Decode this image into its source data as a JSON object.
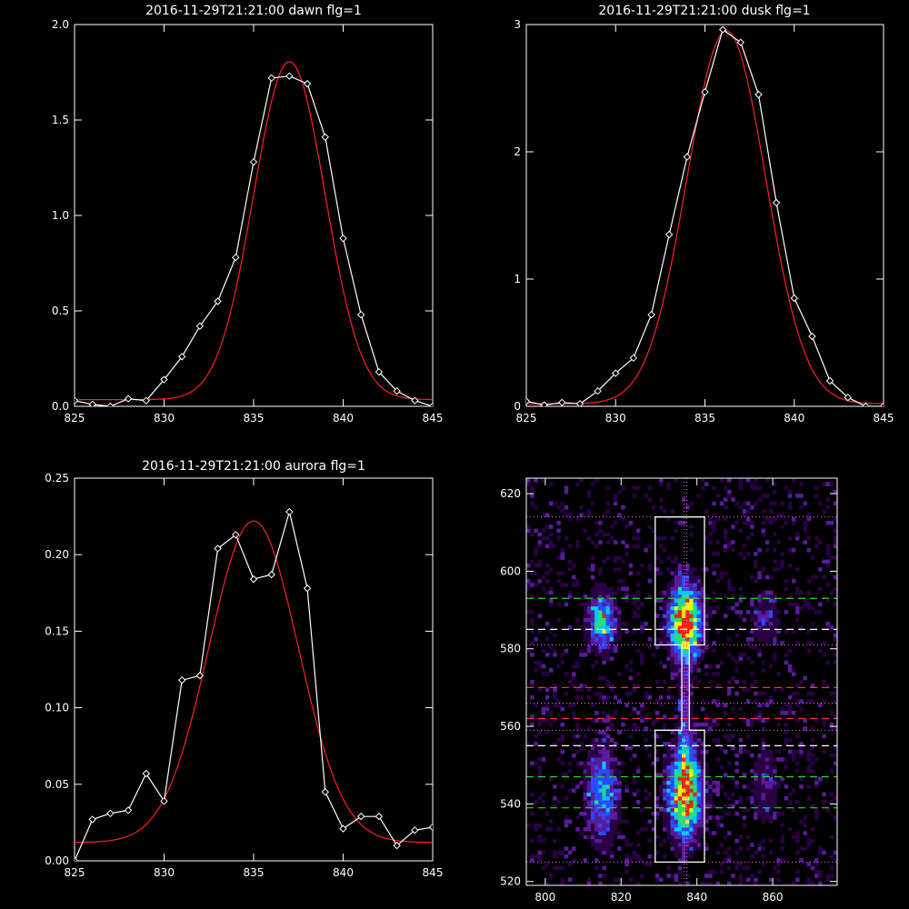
{
  "chart_data": [
    {
      "id": "dawn",
      "type": "line",
      "title": "2016-11-29T21:21:00 dawn flg=1",
      "xlim": [
        825,
        845
      ],
      "ylim": [
        0,
        2.0
      ],
      "xticks": [
        825,
        830,
        835,
        840,
        845
      ],
      "yticks": [
        0.0,
        0.5,
        1.0,
        1.5,
        2.0
      ],
      "ytick_labels": [
        "0.0",
        "0.5",
        "1.0",
        "1.5",
        "2.0"
      ],
      "series": [
        {
          "style": "data",
          "color": "#ffffff",
          "marker": "diamond",
          "x": [
            825,
            826,
            827,
            828,
            829,
            830,
            831,
            832,
            833,
            834,
            835,
            836,
            837,
            838,
            839,
            840,
            841,
            842,
            843,
            844,
            845
          ],
          "y": [
            0.03,
            0.01,
            0.0,
            0.04,
            0.03,
            0.14,
            0.26,
            0.42,
            0.55,
            0.78,
            1.28,
            1.72,
            1.73,
            1.69,
            1.41,
            0.88,
            0.48,
            0.18,
            0.08,
            0.03,
            0.0
          ]
        },
        {
          "style": "fit",
          "color": "#ff2020",
          "gauss": {
            "amp": 1.77,
            "center": 837.0,
            "sigma": 2.0,
            "offset": 0.035
          }
        }
      ]
    },
    {
      "id": "dusk",
      "type": "line",
      "title": "2016-11-29T21:21:00 dusk flg=1",
      "xlim": [
        825,
        845
      ],
      "ylim": [
        0,
        3.0
      ],
      "xticks": [
        825,
        830,
        835,
        840,
        845
      ],
      "yticks": [
        0,
        1,
        2,
        3
      ],
      "ytick_labels": [
        "0",
        "1",
        "2",
        "3"
      ],
      "series": [
        {
          "style": "data",
          "color": "#ffffff",
          "marker": "diamond",
          "x": [
            825,
            826,
            827,
            828,
            829,
            830,
            831,
            832,
            833,
            834,
            835,
            836,
            837,
            838,
            839,
            840,
            841,
            842,
            843,
            844,
            845
          ],
          "y": [
            0.04,
            0.01,
            0.03,
            0.02,
            0.12,
            0.26,
            0.38,
            0.72,
            1.35,
            1.96,
            2.47,
            2.96,
            2.86,
            2.45,
            1.6,
            0.85,
            0.55,
            0.2,
            0.07,
            0.0,
            0.0
          ]
        },
        {
          "style": "fit",
          "color": "#ff2020",
          "gauss": {
            "amp": 2.93,
            "center": 836.2,
            "sigma": 2.2,
            "offset": 0.02
          }
        }
      ]
    },
    {
      "id": "aurora",
      "type": "line",
      "title": "2016-11-29T21:21:00 aurora flg=1",
      "xlim": [
        825,
        845
      ],
      "ylim": [
        0,
        0.25
      ],
      "xticks": [
        825,
        830,
        835,
        840,
        845
      ],
      "yticks": [
        0.0,
        0.05,
        0.1,
        0.15,
        0.2,
        0.25
      ],
      "ytick_labels": [
        "0.00",
        "0.05",
        "0.10",
        "0.15",
        "0.20",
        "0.25"
      ],
      "series": [
        {
          "style": "data",
          "color": "#ffffff",
          "marker": "diamond",
          "x": [
            825,
            826,
            827,
            828,
            829,
            830,
            831,
            832,
            833,
            834,
            835,
            836,
            837,
            838,
            839,
            840,
            841,
            842,
            843,
            844,
            845
          ],
          "y": [
            0.0,
            0.027,
            0.031,
            0.033,
            0.057,
            0.039,
            0.118,
            0.121,
            0.204,
            0.213,
            0.184,
            0.187,
            0.228,
            0.178,
            0.045,
            0.021,
            0.029,
            0.029,
            0.01,
            0.02,
            0.022
          ]
        },
        {
          "style": "fit",
          "color": "#ff2020",
          "gauss": {
            "amp": 0.21,
            "center": 835.0,
            "sigma": 2.5,
            "offset": 0.012
          }
        }
      ]
    },
    {
      "id": "image",
      "type": "heatmap",
      "xlim": [
        795,
        877
      ],
      "ylim": [
        519,
        624
      ],
      "xticks": [
        800,
        820,
        840,
        860
      ],
      "yticks": [
        520,
        540,
        560,
        580,
        600,
        620
      ],
      "colormap": [
        "#000000",
        "#2a0045",
        "#5a1a9c",
        "#2a4cff",
        "#00c8ff",
        "#22e07a",
        "#e8ff00",
        "#ff1a00"
      ],
      "blobs": [
        {
          "x": 837,
          "y": 587,
          "sx": 3.0,
          "sy": 6.5,
          "amp": 1.0
        },
        {
          "x": 837,
          "y": 543,
          "sx": 3.0,
          "sy": 8.0,
          "amp": 0.95
        },
        {
          "x": 815,
          "y": 587,
          "sx": 2.6,
          "sy": 5.0,
          "amp": 0.62
        },
        {
          "x": 815,
          "y": 543,
          "sx": 2.8,
          "sy": 8.0,
          "amp": 0.52
        },
        {
          "x": 858,
          "y": 588,
          "sx": 2.6,
          "sy": 4.5,
          "amp": 0.25
        },
        {
          "x": 858,
          "y": 545,
          "sx": 2.6,
          "sy": 7.0,
          "amp": 0.22
        },
        {
          "x": 837,
          "y": 560,
          "sx": 1.2,
          "sy": 14.0,
          "amp": 0.25
        }
      ],
      "dotted_hlines": [
        614,
        581,
        566,
        559,
        525
      ],
      "dotted_vlines": [
        837
      ],
      "dotted_color": "#ff66ff",
      "dashed_hlines": [
        {
          "y": 593,
          "color": "#22dd22"
        },
        {
          "y": 585,
          "color": "#ffffff"
        },
        {
          "y": 570,
          "color": "#ff3030"
        },
        {
          "y": 562,
          "color": "#ff3030"
        },
        {
          "y": 555,
          "color": "#ffffff"
        },
        {
          "y": 547,
          "color": "#22dd22"
        },
        {
          "y": 539,
          "color": "#22dd22"
        }
      ],
      "box_outline": [
        [
          829,
          614
        ],
        [
          842,
          614
        ],
        [
          842,
          581
        ],
        [
          838,
          581
        ],
        [
          838,
          559
        ],
        [
          842,
          559
        ],
        [
          842,
          525
        ],
        [
          829,
          525
        ],
        [
          829,
          559
        ],
        [
          836,
          559
        ],
        [
          836,
          581
        ],
        [
          829,
          581
        ]
      ],
      "box_color": "#ffffff"
    }
  ]
}
